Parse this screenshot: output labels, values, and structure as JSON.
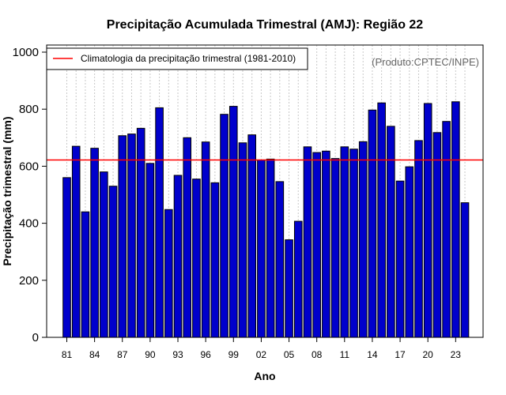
{
  "chart_data": {
    "type": "bar",
    "title": "Precipitação Acumulada Trimestral (AMJ): Região 22",
    "xlabel": "Ano",
    "ylabel": "Precipitação trimestral (mm)",
    "ylim": [
      0,
      1000
    ],
    "yticks": [
      0,
      200,
      400,
      600,
      800,
      1000
    ],
    "xtick_labels": [
      "81",
      "84",
      "87",
      "90",
      "93",
      "96",
      "99",
      "02",
      "05",
      "08",
      "11",
      "14",
      "17",
      "20",
      "23"
    ],
    "xtick_years": [
      1981,
      1984,
      1987,
      1990,
      1993,
      1996,
      1999,
      2002,
      2005,
      2008,
      2011,
      2014,
      2017,
      2020,
      2023
    ],
    "categories": [
      1981,
      1982,
      1983,
      1984,
      1985,
      1986,
      1987,
      1988,
      1989,
      1990,
      1991,
      1992,
      1993,
      1994,
      1995,
      1996,
      1997,
      1998,
      1999,
      2000,
      2001,
      2002,
      2003,
      2004,
      2005,
      2006,
      2007,
      2008,
      2009,
      2010,
      2011,
      2012,
      2013,
      2014,
      2015,
      2016,
      2017,
      2018,
      2019,
      2020,
      2021,
      2022,
      2023,
      2024
    ],
    "values": [
      560,
      670,
      440,
      663,
      580,
      530,
      707,
      713,
      733,
      610,
      805,
      448,
      568,
      700,
      555,
      685,
      542,
      782,
      810,
      682,
      710,
      622,
      625,
      546,
      342,
      407,
      668,
      648,
      653,
      627,
      668,
      660,
      686,
      797,
      822,
      740,
      548,
      598,
      690,
      820,
      718,
      757,
      826,
      472
    ],
    "series_name": "Precipitação trimestral",
    "bar_color": "#0000cc",
    "bar_edge_color": "#000000",
    "reference_line": {
      "value": 622,
      "label": "Climatologia da precipitação trimestral (1981-2010)",
      "color": "#ff0000"
    },
    "grid": "vertical dotted lines per year",
    "legend_position": "top-left",
    "credit": "(Produto:CPTEC/INPE)"
  }
}
